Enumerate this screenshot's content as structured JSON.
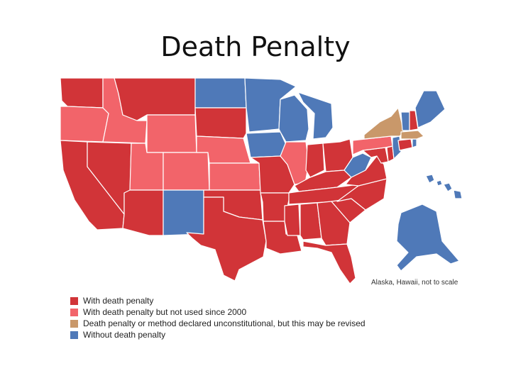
{
  "title": "Death Penalty",
  "map_note": "Alaska, Hawaii, not to scale",
  "colors": {
    "with": "#d13438",
    "not_used": "#f2646a",
    "unconstitutional": "#c9986a",
    "without": "#4f79b8"
  },
  "legend": [
    {
      "label": "With death penalty",
      "color": "#d13438"
    },
    {
      "label": "With death penalty but not used since 2000",
      "color": "#f2646a"
    },
    {
      "label": "Death penalty or method declared unconstitutional, but this may be revised",
      "color": "#c9986a"
    },
    {
      "label": "Without death penalty",
      "color": "#4f79b8"
    }
  ],
  "states": [
    {
      "name": "Washington",
      "status": "with"
    },
    {
      "name": "Oregon",
      "status": "not_used"
    },
    {
      "name": "California",
      "status": "with"
    },
    {
      "name": "Nevada",
      "status": "with"
    },
    {
      "name": "Idaho",
      "status": "not_used"
    },
    {
      "name": "Montana",
      "status": "with"
    },
    {
      "name": "Wyoming",
      "status": "not_used"
    },
    {
      "name": "Utah",
      "status": "not_used"
    },
    {
      "name": "Arizona",
      "status": "with"
    },
    {
      "name": "Colorado",
      "status": "not_used"
    },
    {
      "name": "New Mexico",
      "status": "without"
    },
    {
      "name": "North Dakota",
      "status": "without"
    },
    {
      "name": "South Dakota",
      "status": "with"
    },
    {
      "name": "Nebraska",
      "status": "not_used"
    },
    {
      "name": "Kansas",
      "status": "not_used"
    },
    {
      "name": "Oklahoma",
      "status": "with"
    },
    {
      "name": "Texas",
      "status": "with"
    },
    {
      "name": "Minnesota",
      "status": "without"
    },
    {
      "name": "Iowa",
      "status": "without"
    },
    {
      "name": "Missouri",
      "status": "with"
    },
    {
      "name": "Arkansas",
      "status": "with"
    },
    {
      "name": "Louisiana",
      "status": "with"
    },
    {
      "name": "Wisconsin",
      "status": "without"
    },
    {
      "name": "Illinois",
      "status": "not_used"
    },
    {
      "name": "Michigan",
      "status": "without"
    },
    {
      "name": "Indiana",
      "status": "with"
    },
    {
      "name": "Ohio",
      "status": "with"
    },
    {
      "name": "Kentucky",
      "status": "with"
    },
    {
      "name": "Tennessee",
      "status": "with"
    },
    {
      "name": "Mississippi",
      "status": "with"
    },
    {
      "name": "Alabama",
      "status": "with"
    },
    {
      "name": "Georgia",
      "status": "with"
    },
    {
      "name": "Florida",
      "status": "with"
    },
    {
      "name": "South Carolina",
      "status": "with"
    },
    {
      "name": "North Carolina",
      "status": "with"
    },
    {
      "name": "Virginia",
      "status": "with"
    },
    {
      "name": "West Virginia",
      "status": "without"
    },
    {
      "name": "Maryland",
      "status": "with"
    },
    {
      "name": "Delaware",
      "status": "with"
    },
    {
      "name": "New Jersey",
      "status": "without"
    },
    {
      "name": "Pennsylvania",
      "status": "not_used"
    },
    {
      "name": "New York",
      "status": "unconstitutional"
    },
    {
      "name": "Connecticut",
      "status": "with"
    },
    {
      "name": "Rhode Island",
      "status": "without"
    },
    {
      "name": "Massachusetts",
      "status": "unconstitutional"
    },
    {
      "name": "Vermont",
      "status": "without"
    },
    {
      "name": "New Hampshire",
      "status": "with"
    },
    {
      "name": "Maine",
      "status": "without"
    },
    {
      "name": "Alaska",
      "status": "without"
    },
    {
      "name": "Hawaii",
      "status": "without"
    }
  ]
}
